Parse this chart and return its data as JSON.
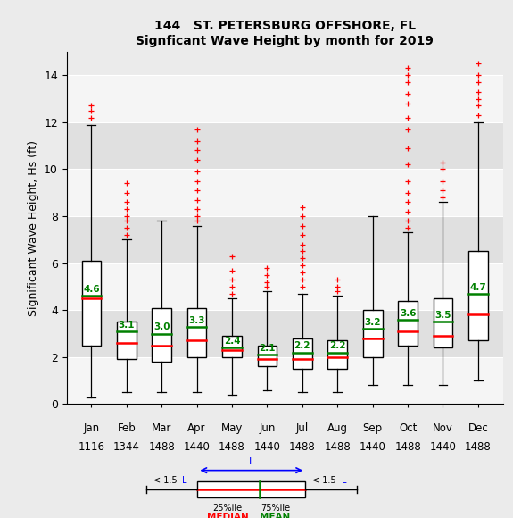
{
  "title_line1": "144   ST. PETERSBURG OFFSHORE, FL",
  "title_line2": "Signficant Wave Height by month for 2019",
  "ylabel": "Significant Wave Height, Hs (ft)",
  "months": [
    "Jan",
    "Feb",
    "Mar",
    "Apr",
    "May",
    "Jun",
    "Jul",
    "Aug",
    "Sep",
    "Oct",
    "Nov",
    "Dec"
  ],
  "counts": [
    "1116",
    "1344",
    "1488",
    "1440",
    "1488",
    "1440",
    "1488",
    "1488",
    "1440",
    "1488",
    "1440",
    "1488"
  ],
  "ylim": [
    0,
    15
  ],
  "yticks": [
    0,
    2,
    4,
    6,
    8,
    10,
    12,
    14
  ],
  "boxes": [
    {
      "q1": 2.5,
      "median": 4.5,
      "q3": 6.1,
      "mean": 4.6,
      "whisker_low": 0.3,
      "whisker_high": 11.9,
      "fliers_high": [
        12.2,
        12.5,
        12.7
      ],
      "fliers_low": []
    },
    {
      "q1": 1.9,
      "median": 2.6,
      "q3": 3.5,
      "mean": 3.1,
      "whisker_low": 0.5,
      "whisker_high": 7.0,
      "fliers_high": [
        7.2,
        7.5,
        7.8,
        8.0,
        8.3,
        8.6,
        9.0,
        9.4
      ],
      "fliers_low": []
    },
    {
      "q1": 1.8,
      "median": 2.5,
      "q3": 4.1,
      "mean": 3.0,
      "whisker_low": 0.5,
      "whisker_high": 7.8,
      "fliers_high": [],
      "fliers_low": []
    },
    {
      "q1": 2.0,
      "median": 2.7,
      "q3": 4.1,
      "mean": 3.3,
      "whisker_low": 0.5,
      "whisker_high": 7.6,
      "fliers_high": [
        7.8,
        8.0,
        8.3,
        8.7,
        9.1,
        9.5,
        9.9,
        10.4,
        10.8,
        11.2,
        11.7
      ],
      "fliers_low": []
    },
    {
      "q1": 2.0,
      "median": 2.3,
      "q3": 2.9,
      "mean": 2.4,
      "whisker_low": 0.4,
      "whisker_high": 4.5,
      "fliers_high": [
        4.7,
        5.0,
        5.3,
        5.7,
        6.3
      ],
      "fliers_low": []
    },
    {
      "q1": 1.6,
      "median": 1.9,
      "q3": 2.5,
      "mean": 2.1,
      "whisker_low": 0.6,
      "whisker_high": 4.8,
      "fliers_high": [
        5.0,
        5.2,
        5.5,
        5.8
      ],
      "fliers_low": []
    },
    {
      "q1": 1.5,
      "median": 1.9,
      "q3": 2.8,
      "mean": 2.2,
      "whisker_low": 0.5,
      "whisker_high": 4.7,
      "fliers_high": [
        5.0,
        5.3,
        5.6,
        5.9,
        6.2,
        6.5,
        6.8,
        7.2,
        7.6,
        8.0,
        8.4
      ],
      "fliers_low": []
    },
    {
      "q1": 1.5,
      "median": 2.0,
      "q3": 2.7,
      "mean": 2.2,
      "whisker_low": 0.5,
      "whisker_high": 4.6,
      "fliers_high": [
        4.8,
        5.0,
        5.3
      ],
      "fliers_low": []
    },
    {
      "q1": 2.0,
      "median": 2.8,
      "q3": 4.0,
      "mean": 3.2,
      "whisker_low": 0.8,
      "whisker_high": 8.0,
      "fliers_high": [],
      "fliers_low": []
    },
    {
      "q1": 2.5,
      "median": 3.1,
      "q3": 4.4,
      "mean": 3.6,
      "whisker_low": 0.8,
      "whisker_high": 7.3,
      "fliers_high": [
        7.5,
        7.8,
        8.2,
        8.6,
        9.0,
        9.5,
        10.2,
        10.9,
        11.7,
        12.2,
        12.8,
        13.2,
        13.7,
        14.0,
        14.3
      ],
      "fliers_low": []
    },
    {
      "q1": 2.4,
      "median": 2.9,
      "q3": 4.5,
      "mean": 3.5,
      "whisker_low": 0.8,
      "whisker_high": 8.6,
      "fliers_high": [
        8.8,
        9.1,
        9.5,
        10.0,
        10.3
      ],
      "fliers_low": []
    },
    {
      "q1": 2.7,
      "median": 3.8,
      "q3": 6.5,
      "mean": 4.7,
      "whisker_low": 1.0,
      "whisker_high": 12.0,
      "fliers_high": [
        12.3,
        12.7,
        13.0,
        13.3,
        13.7,
        14.0,
        14.5
      ],
      "fliers_low": []
    }
  ],
  "box_color": "white",
  "box_edge_color": "black",
  "median_color": "red",
  "mean_color": "green",
  "whisker_color": "black",
  "flier_color": "red",
  "mean_label_color": "green",
  "bg_color": "#ebebeb",
  "stripe_light": "#f5f5f5",
  "stripe_dark": "#e0e0e0",
  "grid_color": "white"
}
